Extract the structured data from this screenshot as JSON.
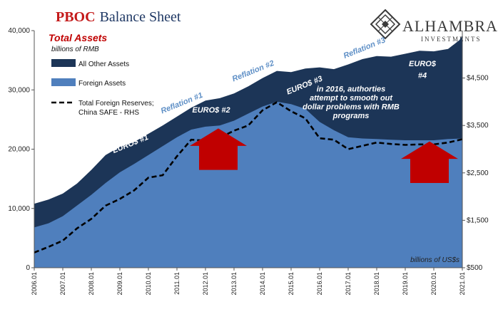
{
  "header": {
    "title_part1": "PBOC",
    "title_part2": "Balance Sheet",
    "title_color": "#c41a1a",
    "title2_color": "#1f3864"
  },
  "logo": {
    "name": "ALHAMBRA",
    "subtitle": "INVESTMENTS",
    "icon": "diamond-lattice-icon"
  },
  "colors": {
    "all_other_assets": "#1c3557",
    "foreign_assets": "#4f7fbd",
    "reserves_line": "#000000",
    "arrow": "#c00000",
    "annotation_reflation": "#5e8fc6",
    "subtitle_red": "#c00000"
  },
  "chart_data": {
    "type": "area",
    "title": "Total Assets",
    "subtitle": "billions of RMB",
    "y_left": {
      "ticks": [
        "0",
        "10,000",
        "20,000",
        "30,000",
        "40,000"
      ],
      "min": 0,
      "max": 40000
    },
    "y_right": {
      "ticks": [
        "$500",
        "$1,500",
        "$2,500",
        "$3,500",
        "$4,500"
      ],
      "min": 500,
      "max": 5500,
      "unit_label": "billions of US$s"
    },
    "x_labels": [
      "2006.01",
      "2007.01",
      "2008.01",
      "2009.01",
      "2010.01",
      "2011.01",
      "2012.01",
      "2013.01",
      "2014.01",
      "2015.01",
      "2016.01",
      "2017.01",
      "2018.01",
      "2019.01",
      "2020.01",
      "2021.01"
    ],
    "x_range": [
      2006.0,
      2021.0
    ],
    "series": [
      {
        "name": "All Other Assets",
        "kind": "stacked-area-total",
        "points": [
          [
            2006.0,
            10800
          ],
          [
            2006.5,
            11500
          ],
          [
            2007.0,
            12500
          ],
          [
            2007.5,
            14200
          ],
          [
            2008.0,
            16500
          ],
          [
            2008.5,
            19000
          ],
          [
            2009.0,
            20400
          ],
          [
            2009.5,
            21200
          ],
          [
            2010.0,
            22600
          ],
          [
            2010.5,
            24000
          ],
          [
            2011.0,
            25500
          ],
          [
            2011.5,
            27000
          ],
          [
            2012.0,
            28200
          ],
          [
            2012.5,
            28600
          ],
          [
            2013.0,
            29400
          ],
          [
            2013.5,
            30600
          ],
          [
            2014.0,
            32000
          ],
          [
            2014.5,
            33200
          ],
          [
            2015.0,
            33000
          ],
          [
            2015.5,
            33600
          ],
          [
            2016.0,
            33800
          ],
          [
            2016.5,
            33500
          ],
          [
            2017.0,
            34300
          ],
          [
            2017.5,
            35200
          ],
          [
            2018.0,
            35700
          ],
          [
            2018.5,
            35600
          ],
          [
            2019.0,
            36100
          ],
          [
            2019.5,
            36600
          ],
          [
            2020.0,
            36500
          ],
          [
            2020.5,
            36900
          ],
          [
            2020.9,
            38400
          ],
          [
            2021.0,
            39200
          ]
        ]
      },
      {
        "name": "Foreign Assets",
        "kind": "area",
        "points": [
          [
            2006.0,
            6800
          ],
          [
            2006.5,
            7500
          ],
          [
            2007.0,
            8700
          ],
          [
            2007.5,
            10500
          ],
          [
            2008.0,
            12300
          ],
          [
            2008.5,
            14300
          ],
          [
            2009.0,
            16100
          ],
          [
            2009.5,
            17500
          ],
          [
            2010.0,
            19000
          ],
          [
            2010.5,
            20500
          ],
          [
            2011.0,
            22000
          ],
          [
            2011.5,
            23300
          ],
          [
            2012.0,
            23800
          ],
          [
            2012.5,
            24000
          ],
          [
            2013.0,
            24800
          ],
          [
            2013.5,
            26000
          ],
          [
            2014.0,
            27200
          ],
          [
            2014.5,
            28000
          ],
          [
            2015.0,
            27600
          ],
          [
            2015.5,
            26800
          ],
          [
            2016.0,
            24600
          ],
          [
            2016.5,
            23200
          ],
          [
            2017.0,
            22000
          ],
          [
            2017.5,
            21800
          ],
          [
            2018.0,
            21700
          ],
          [
            2018.5,
            21600
          ],
          [
            2019.0,
            21500
          ],
          [
            2019.5,
            21500
          ],
          [
            2020.0,
            21500
          ],
          [
            2020.5,
            21700
          ],
          [
            2021.0,
            21800
          ]
        ]
      },
      {
        "name": "Total Foreign Reserves; China SAFE - RHS",
        "kind": "line-rhs",
        "points": [
          [
            2006.0,
            820
          ],
          [
            2006.5,
            940
          ],
          [
            2007.0,
            1070
          ],
          [
            2007.5,
            1330
          ],
          [
            2008.0,
            1530
          ],
          [
            2008.5,
            1810
          ],
          [
            2009.0,
            1950
          ],
          [
            2009.5,
            2130
          ],
          [
            2010.0,
            2400
          ],
          [
            2010.5,
            2450
          ],
          [
            2011.0,
            2850
          ],
          [
            2011.5,
            3200
          ],
          [
            2012.0,
            3180
          ],
          [
            2012.5,
            3240
          ],
          [
            2013.0,
            3390
          ],
          [
            2013.5,
            3500
          ],
          [
            2014.0,
            3820
          ],
          [
            2014.5,
            3990
          ],
          [
            2015.0,
            3800
          ],
          [
            2015.5,
            3650
          ],
          [
            2016.0,
            3230
          ],
          [
            2016.5,
            3200
          ],
          [
            2017.0,
            3000
          ],
          [
            2017.5,
            3070
          ],
          [
            2018.0,
            3140
          ],
          [
            2018.5,
            3110
          ],
          [
            2019.0,
            3090
          ],
          [
            2019.5,
            3100
          ],
          [
            2020.0,
            3100
          ],
          [
            2020.5,
            3140
          ],
          [
            2021.0,
            3210
          ]
        ]
      }
    ],
    "legend": [
      {
        "label": "All Other Assets",
        "swatch": "all_other_assets"
      },
      {
        "label": "Foreign Assets",
        "swatch": "foreign_assets"
      },
      {
        "label": "Total Foreign Reserves;",
        "label2": "China SAFE - RHS",
        "swatch": "dashed"
      }
    ],
    "annotations": [
      {
        "text": "Reflation #1",
        "style": "reflation",
        "x": 2011.2,
        "y": 27400,
        "rotate": -22
      },
      {
        "text": "Reflation #2",
        "style": "reflation",
        "x": 2013.7,
        "y": 32800,
        "rotate": -22
      },
      {
        "text": "Reflation #3",
        "style": "reflation",
        "x": 2017.6,
        "y": 36700,
        "rotate": -22
      },
      {
        "text": "EURO$ #1",
        "style": "euro",
        "x": 2009.4,
        "y": 20500,
        "rotate": -22
      },
      {
        "text": "EURO$ #2",
        "style": "euro",
        "x": 2012.2,
        "y": 26200,
        "rotate": 0
      },
      {
        "text": "EURO$ #3",
        "style": "euro",
        "x": 2015.5,
        "y": 30400,
        "rotate": -22
      },
      {
        "text": "EURO$",
        "style": "euro",
        "x": 2019.6,
        "y": 34000,
        "rotate": 0
      },
      {
        "text": "#4",
        "style": "euro",
        "x": 2019.6,
        "y": 32000,
        "rotate": 0
      },
      {
        "text": "in 2016, authorties",
        "style": "euro",
        "x": 2017.1,
        "y": 29700,
        "rotate": 0
      },
      {
        "text": "attempt to smooth out",
        "style": "euro",
        "x": 2017.1,
        "y": 28200,
        "rotate": 0
      },
      {
        "text": "dollar problems with RMB",
        "style": "euro",
        "x": 2017.1,
        "y": 26700,
        "rotate": 0
      },
      {
        "text": "programs",
        "style": "euro",
        "x": 2017.1,
        "y": 25200,
        "rotate": 0
      }
    ],
    "arrows": [
      {
        "x": 2012.45,
        "y_base": 16500,
        "y_tip": 23500
      },
      {
        "x": 2019.85,
        "y_base": 14300,
        "y_tip": 21300
      }
    ]
  }
}
